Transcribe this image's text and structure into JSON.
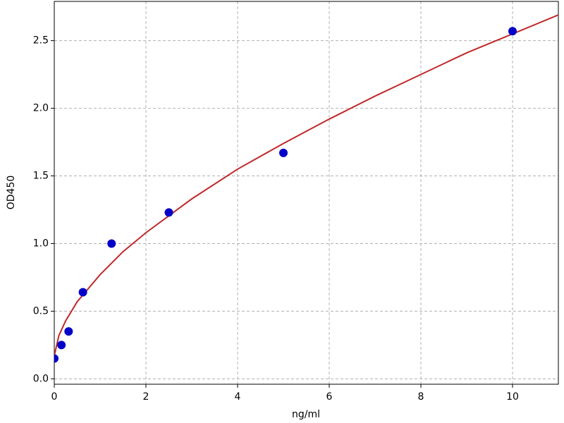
{
  "chart_data": {
    "type": "scatter",
    "xlabel": "ng/ml",
    "ylabel": "OD450",
    "xlim": [
      0,
      11
    ],
    "ylim": [
      -0.04,
      2.79
    ],
    "xticks": [
      0,
      2,
      4,
      6,
      8,
      10
    ],
    "yticks": [
      {
        "value": 0,
        "label": "0.0"
      },
      0.5,
      {
        "value": 1,
        "label": "1.0"
      },
      1.5,
      {
        "value": 2,
        "label": "2.0"
      },
      2.5
    ],
    "grid": true,
    "series": [
      {
        "type": "scatter",
        "color": "#0000c8",
        "x": [
          0,
          0.156,
          0.3125,
          0.625,
          1.25,
          2.5,
          5,
          10
        ],
        "values": [
          0.15,
          0.25,
          0.35,
          0.64,
          1.0,
          1.23,
          1.67,
          2.57
        ]
      },
      {
        "type": "line",
        "color": "#c0282a",
        "x": [
          0,
          0.1,
          0.25,
          0.5,
          1,
          1.5,
          2,
          3,
          4,
          5,
          6,
          7,
          8,
          9,
          10,
          11
        ],
        "values": [
          0.17,
          0.32,
          0.43,
          0.57,
          0.77,
          0.94,
          1.08,
          1.33,
          1.55,
          1.74,
          1.92,
          2.09,
          2.25,
          2.41,
          2.55,
          2.69
        ]
      }
    ]
  }
}
